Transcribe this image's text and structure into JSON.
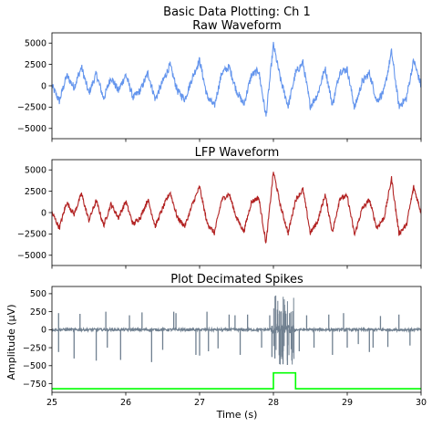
{
  "figure": {
    "suptitle": "Basic Data Plotting: Ch 1"
  },
  "chart_data": [
    {
      "type": "line",
      "title": "Raw Waveform",
      "xlabel": "",
      "ylabel": "",
      "xlim": [
        25,
        30
      ],
      "ylim": [
        -6200,
        6200
      ],
      "yticks": [
        -5000,
        -2500,
        0,
        2500,
        5000
      ],
      "ytick_labels": [
        "−5000",
        "−2500",
        "0",
        "2500",
        "5000"
      ],
      "x_tick_labels_shown": false,
      "grid": false,
      "series": [
        {
          "color": "#6495ED",
          "x": [
            25.0,
            25.1,
            25.2,
            25.3,
            25.4,
            25.5,
            25.6,
            25.7,
            25.8,
            25.9,
            26.0,
            26.1,
            26.2,
            26.3,
            26.4,
            26.5,
            26.6,
            26.7,
            26.8,
            26.9,
            27.0,
            27.1,
            27.2,
            27.3,
            27.4,
            27.5,
            27.6,
            27.7,
            27.8,
            27.9,
            28.0,
            28.1,
            28.2,
            28.3,
            28.4,
            28.5,
            28.6,
            28.7,
            28.8,
            28.9,
            29.0,
            29.1,
            29.2,
            29.3,
            29.4,
            29.5,
            29.6,
            29.7,
            29.8,
            29.9,
            30.0
          ],
          "y": [
            0,
            -1800,
            1200,
            -200,
            2200,
            -900,
            1400,
            -1500,
            1000,
            -600,
            1300,
            -1400,
            -500,
            1500,
            -1600,
            500,
            2400,
            -600,
            -1600,
            900,
            3000,
            -1200,
            -2400,
            1500,
            2200,
            -600,
            -2200,
            1200,
            1800,
            -3600,
            4800,
            600,
            -2400,
            1500,
            2700,
            -2400,
            -1000,
            2100,
            -2300,
            1700,
            1900,
            -2600,
            400,
            1500,
            -1800,
            -600,
            4000,
            -2400,
            -1500,
            3000,
            0
          ]
        }
      ]
    },
    {
      "type": "line",
      "title": "LFP Waveform",
      "xlabel": "",
      "ylabel": "",
      "xlim": [
        25,
        30
      ],
      "ylim": [
        -6200,
        6200
      ],
      "yticks": [
        -5000,
        -2500,
        0,
        2500,
        5000
      ],
      "ytick_labels": [
        "−5000",
        "−2500",
        "0",
        "2500",
        "5000"
      ],
      "x_tick_labels_shown": false,
      "grid": false,
      "series": [
        {
          "color": "#B22222",
          "x": [
            25.0,
            25.1,
            25.2,
            25.3,
            25.4,
            25.5,
            25.6,
            25.7,
            25.8,
            25.9,
            26.0,
            26.1,
            26.2,
            26.3,
            26.4,
            26.5,
            26.6,
            26.7,
            26.8,
            26.9,
            27.0,
            27.1,
            27.2,
            27.3,
            27.4,
            27.5,
            27.6,
            27.7,
            27.8,
            27.9,
            28.0,
            28.1,
            28.2,
            28.3,
            28.4,
            28.5,
            28.6,
            28.7,
            28.8,
            28.9,
            29.0,
            29.1,
            29.2,
            29.3,
            29.4,
            29.5,
            29.6,
            29.7,
            29.8,
            29.9,
            30.0
          ],
          "y": [
            0,
            -1800,
            1200,
            -200,
            2200,
            -900,
            1400,
            -1500,
            1000,
            -600,
            1300,
            -1400,
            -500,
            1500,
            -1600,
            500,
            2400,
            -600,
            -1600,
            900,
            3000,
            -1200,
            -2400,
            1500,
            2200,
            -600,
            -2200,
            1200,
            1800,
            -3600,
            4800,
            600,
            -2400,
            1500,
            2700,
            -2400,
            -1000,
            2100,
            -2300,
            1700,
            1900,
            -2600,
            400,
            1500,
            -1800,
            -600,
            4000,
            -2400,
            -1500,
            3000,
            0
          ]
        }
      ]
    },
    {
      "type": "line",
      "title": "Plot Decimated Spikes",
      "xlabel": "Time (s)",
      "ylabel": "Amplitude (μV)",
      "xlim": [
        25,
        30
      ],
      "ylim": [
        -870,
        600
      ],
      "xticks": [
        25,
        26,
        27,
        28,
        29,
        30
      ],
      "xtick_labels": [
        "25",
        "26",
        "27",
        "28",
        "29",
        "30"
      ],
      "yticks": [
        -750,
        -500,
        -250,
        0,
        250,
        500
      ],
      "ytick_labels": [
        "−750",
        "−500",
        "−250",
        "0",
        "250",
        "500"
      ],
      "grid": false,
      "series": [
        {
          "name": "",
          "color": "#708090",
          "baseline": 0,
          "spikes": [
            {
              "x": 25.09,
              "y": 230
            },
            {
              "x": 25.09,
              "y": -310
            },
            {
              "x": 25.3,
              "y": -400
            },
            {
              "x": 25.38,
              "y": 220
            },
            {
              "x": 25.6,
              "y": -430
            },
            {
              "x": 25.73,
              "y": 250
            },
            {
              "x": 25.75,
              "y": -250
            },
            {
              "x": 25.93,
              "y": -420
            },
            {
              "x": 26.05,
              "y": 200
            },
            {
              "x": 26.22,
              "y": 240
            },
            {
              "x": 26.35,
              "y": -450
            },
            {
              "x": 26.5,
              "y": -280
            },
            {
              "x": 26.65,
              "y": 250
            },
            {
              "x": 26.68,
              "y": 230
            },
            {
              "x": 26.95,
              "y": -350
            },
            {
              "x": 27.0,
              "y": -360
            },
            {
              "x": 27.1,
              "y": 250
            },
            {
              "x": 27.12,
              "y": -300
            },
            {
              "x": 27.25,
              "y": -260
            },
            {
              "x": 27.4,
              "y": 210
            },
            {
              "x": 27.48,
              "y": 200
            },
            {
              "x": 27.55,
              "y": -350
            },
            {
              "x": 27.65,
              "y": 210
            },
            {
              "x": 27.84,
              "y": -250
            },
            {
              "x": 27.95,
              "y": 200
            },
            {
              "x": 27.98,
              "y": -380
            },
            {
              "x": 28.02,
              "y": -400
            },
            {
              "x": 28.06,
              "y": 220
            },
            {
              "x": 28.1,
              "y": 250
            },
            {
              "x": 28.13,
              "y": -480
            },
            {
              "x": 28.16,
              "y": 260
            },
            {
              "x": 28.19,
              "y": -490
            },
            {
              "x": 28.22,
              "y": 230
            },
            {
              "x": 28.25,
              "y": -430
            },
            {
              "x": 28.35,
              "y": -300
            },
            {
              "x": 28.45,
              "y": 200
            },
            {
              "x": 28.55,
              "y": -250
            },
            {
              "x": 28.75,
              "y": 210
            },
            {
              "x": 28.8,
              "y": -350
            },
            {
              "x": 28.95,
              "y": 230
            },
            {
              "x": 29.0,
              "y": -250
            },
            {
              "x": 29.15,
              "y": -200
            },
            {
              "x": 29.3,
              "y": -310
            },
            {
              "x": 29.35,
              "y": -250
            },
            {
              "x": 29.45,
              "y": 190
            },
            {
              "x": 29.55,
              "y": -240
            },
            {
              "x": 29.7,
              "y": 210
            },
            {
              "x": 29.85,
              "y": -220
            }
          ]
        },
        {
          "name": "",
          "color": "#00FF00",
          "x": [
            25.0,
            28.0,
            28.0,
            28.3,
            28.3,
            30.0
          ],
          "y": [
            -820,
            -820,
            -600,
            -600,
            -820,
            -820
          ]
        }
      ]
    }
  ]
}
